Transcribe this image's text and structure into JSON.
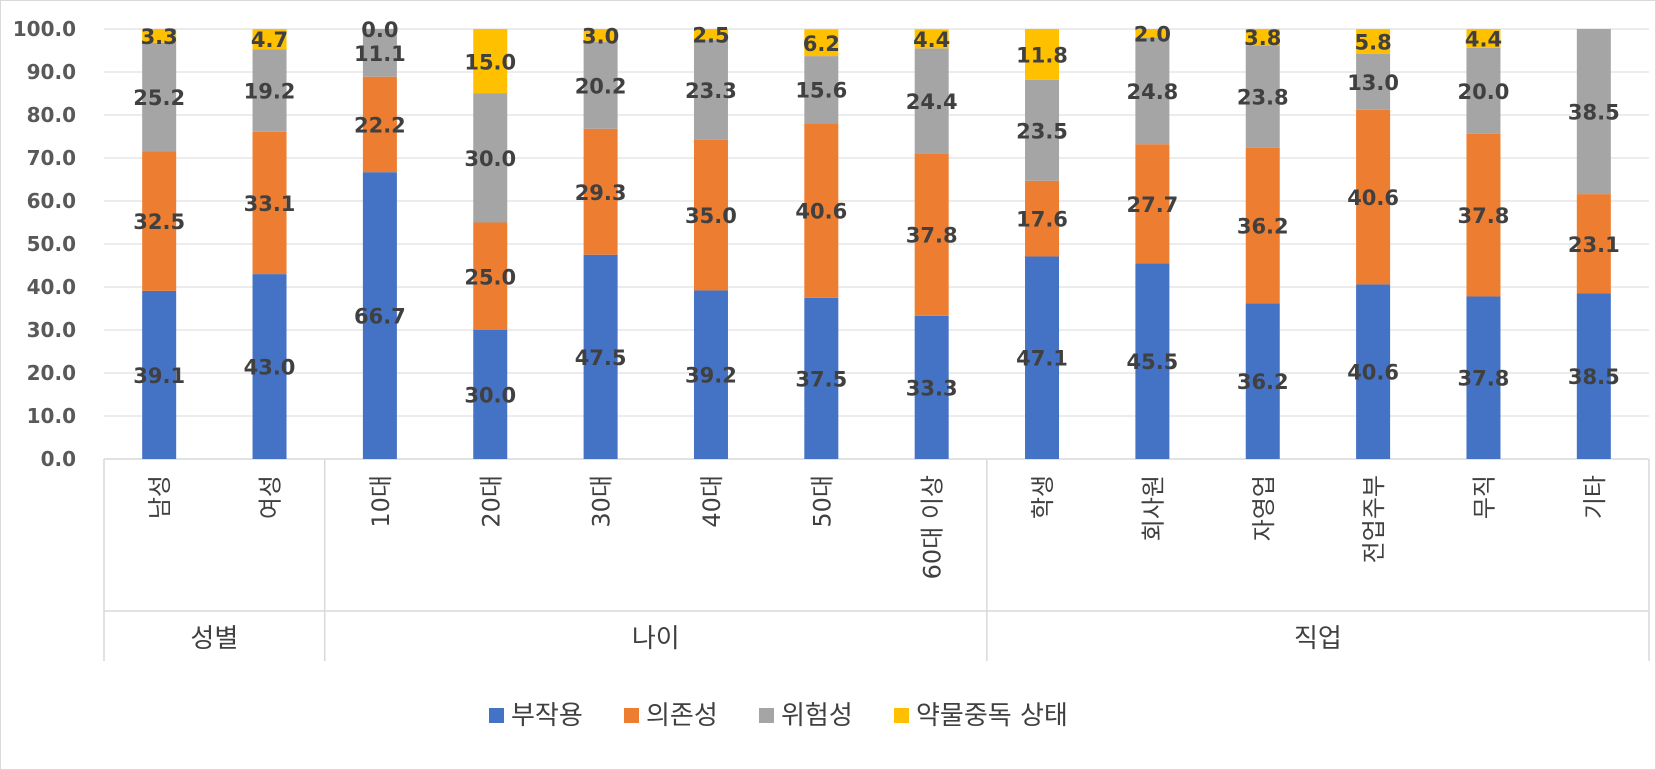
{
  "chart_data": {
    "type": "bar",
    "stacked": true,
    "ylim": [
      0,
      100
    ],
    "y_ticks": [
      "0.0",
      "10.0",
      "20.0",
      "30.0",
      "40.0",
      "50.0",
      "60.0",
      "70.0",
      "80.0",
      "90.0",
      "100.0"
    ],
    "groups": [
      {
        "label": "성별",
        "categories": [
          "남성",
          "여성"
        ]
      },
      {
        "label": "나이",
        "categories": [
          "10대",
          "20대",
          "30대",
          "40대",
          "50대",
          "60대 이상"
        ]
      },
      {
        "label": "직업",
        "categories": [
          "학생",
          "회사원",
          "자영업",
          "전업주부",
          "무직",
          "기타"
        ]
      }
    ],
    "categories": [
      "남성",
      "여성",
      "10대",
      "20대",
      "30대",
      "40대",
      "50대",
      "60대 이상",
      "학생",
      "회사원",
      "자영업",
      "전업주부",
      "무직",
      "기타"
    ],
    "series": [
      {
        "name": "부작용",
        "color": "#4472c4",
        "values": [
          39.1,
          43.0,
          66.7,
          30.0,
          47.5,
          39.2,
          37.5,
          33.3,
          47.1,
          45.5,
          36.2,
          40.6,
          37.8,
          38.5
        ]
      },
      {
        "name": "의존성",
        "color": "#ed7d31",
        "values": [
          32.5,
          33.1,
          22.2,
          25.0,
          29.3,
          35.0,
          40.6,
          37.8,
          17.6,
          27.7,
          36.2,
          40.6,
          37.8,
          23.1
        ]
      },
      {
        "name": "위험성",
        "color": "#a5a5a5",
        "values": [
          25.2,
          19.2,
          11.1,
          30.0,
          20.2,
          23.3,
          15.6,
          24.4,
          23.5,
          24.8,
          23.8,
          13.0,
          20.0,
          38.5
        ]
      },
      {
        "name": "약물중독 상태",
        "color": "#ffc000",
        "values": [
          3.3,
          4.7,
          0.0,
          15.0,
          3.0,
          2.5,
          6.2,
          4.4,
          11.8,
          2.0,
          3.8,
          5.8,
          4.4,
          null
        ]
      }
    ],
    "legend_position": "bottom",
    "grid": true
  }
}
